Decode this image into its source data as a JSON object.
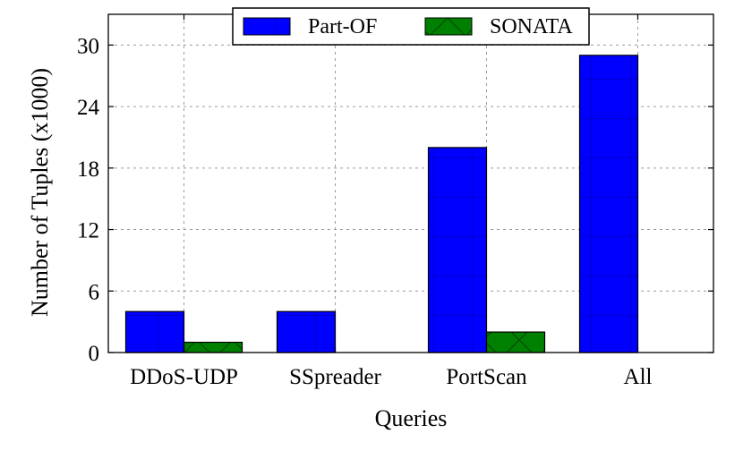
{
  "chart_data": {
    "type": "bar",
    "categories": [
      "DDoS-UDP",
      "SSpreader",
      "PortScan",
      "All"
    ],
    "series": [
      {
        "name": "Part-OF",
        "values": [
          4,
          4,
          20,
          29
        ],
        "color": "#0000ff",
        "pattern": "grid"
      },
      {
        "name": "SONATA",
        "values": [
          1,
          0,
          2,
          0
        ],
        "color": "#008000",
        "pattern": "crosshatch"
      }
    ],
    "xlabel": "Queries",
    "ylabel": "Number of Tuples (x1000)",
    "yticks": [
      0,
      6,
      12,
      18,
      24,
      30
    ],
    "ylim": [
      0,
      33
    ],
    "grid": true,
    "legend_position": "top-center"
  }
}
